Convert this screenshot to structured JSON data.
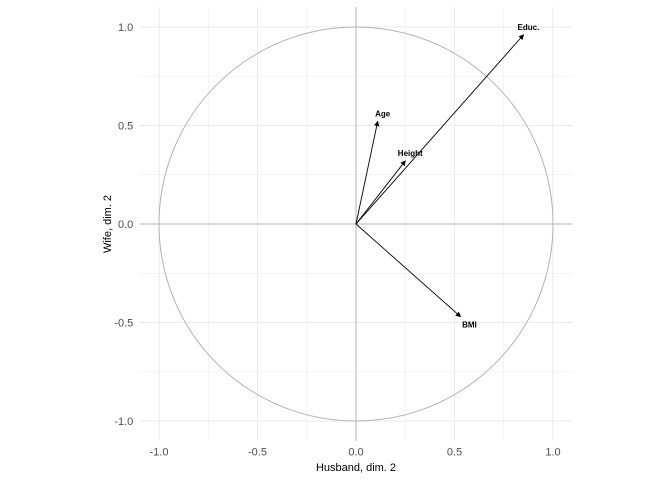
{
  "chart_data": {
    "type": "correlation-circle",
    "xlabel": "Husband, dim. 2",
    "ylabel": "Wife, dim. 2",
    "xlim": [
      -1.1,
      1.1
    ],
    "ylim": [
      -1.1,
      1.1
    ],
    "xticks": [
      "-1.0",
      "-0.5",
      "0.0",
      "0.5",
      "1.0"
    ],
    "yticks": [
      "-1.0",
      "-0.5",
      "0.0",
      "0.5",
      "1.0"
    ],
    "grid": true,
    "unit_circle": true,
    "vectors": [
      {
        "label": "Educ.",
        "x": 0.85,
        "y": 0.96
      },
      {
        "label": "Age",
        "x": 0.11,
        "y": 0.52
      },
      {
        "label": "Height",
        "x": 0.25,
        "y": 0.32
      },
      {
        "label": "BMI",
        "x": 0.53,
        "y": -0.47
      }
    ],
    "colors": {
      "arrow": "#000000",
      "circle": "#b3b3b3",
      "grid": "#ebebeb",
      "axis_lines": "#b3b3b3"
    }
  }
}
